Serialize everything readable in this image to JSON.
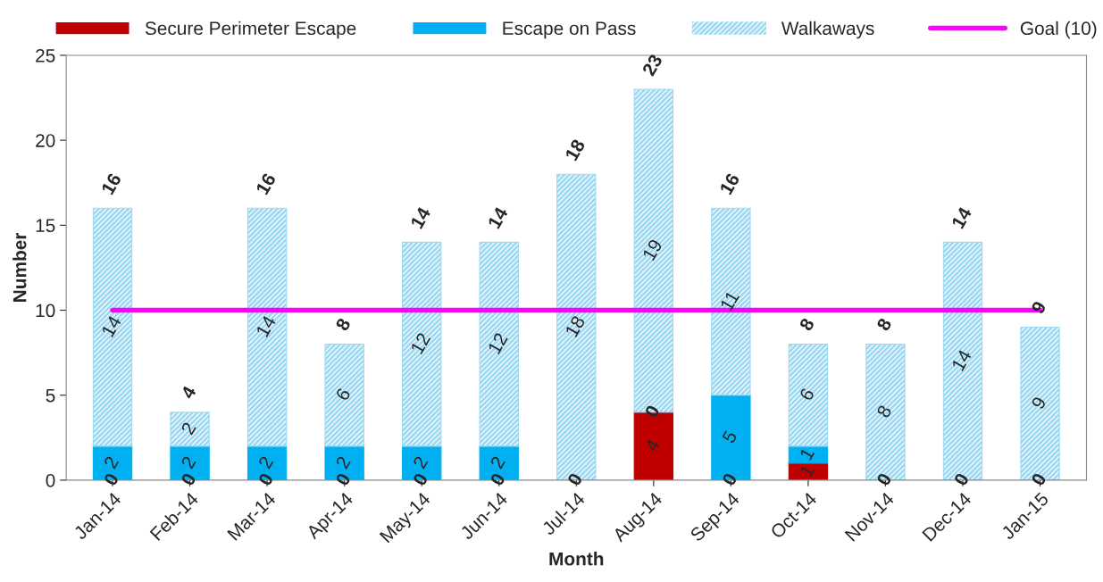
{
  "chart_data": {
    "type": "bar",
    "stacked": true,
    "xlabel": "Month",
    "ylabel": "Number",
    "categories": [
      "Jan-14",
      "Feb-14",
      "Mar-14",
      "Apr-14",
      "May-14",
      "Jun-14",
      "Jul-14",
      "Aug-14",
      "Sep-14",
      "Oct-14",
      "Nov-14",
      "Dec-14",
      "Jan-15"
    ],
    "series": [
      {
        "name": "Secure Perimeter Escape",
        "color": "#c00000",
        "values": [
          0,
          0,
          0,
          0,
          0,
          0,
          0,
          4,
          0,
          1,
          0,
          0,
          0
        ],
        "value_labels": [
          "0",
          "0",
          "0",
          "0",
          "0",
          "0",
          "0",
          "4",
          "0",
          "1",
          "0",
          "0",
          "0"
        ]
      },
      {
        "name": "Escape on Pass",
        "color": "#00b0f0",
        "values": [
          2,
          2,
          2,
          2,
          2,
          2,
          0,
          0,
          5,
          1,
          0,
          0,
          0
        ],
        "value_labels": [
          "2",
          "2",
          "2",
          "2",
          "2",
          "2",
          null,
          "0",
          "5",
          "1",
          null,
          null,
          null
        ]
      },
      {
        "name": "Walkaways",
        "color": "#9dd9f3",
        "values": [
          14,
          2,
          14,
          6,
          12,
          12,
          18,
          19,
          11,
          6,
          8,
          14,
          9
        ],
        "value_labels": [
          "14",
          "2",
          "14",
          "6",
          "12",
          "12",
          "18",
          "19",
          "11",
          "6",
          "8",
          "14",
          "9"
        ]
      },
      {
        "name": "Goal (10)",
        "type": "line",
        "color": "#ff00ff",
        "values": [
          10,
          10,
          10,
          10,
          10,
          10,
          10,
          10,
          10,
          10,
          10,
          10,
          10
        ]
      }
    ],
    "totals": [
      "16",
      "4",
      "16",
      "8",
      "14",
      "14",
      "18",
      "23",
      "16",
      "8",
      "8",
      "14",
      "9"
    ],
    "ylim": [
      0,
      25
    ],
    "yticks": [
      0,
      5,
      10,
      15,
      20,
      25
    ],
    "grid": false,
    "legend": "top"
  }
}
